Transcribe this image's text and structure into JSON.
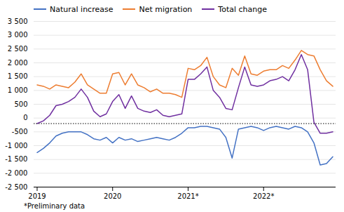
{
  "chart_data": {
    "type": "line",
    "categories": [
      "2019",
      null,
      null,
      null,
      null,
      null,
      null,
      null,
      null,
      null,
      null,
      null,
      "2020",
      null,
      null,
      null,
      null,
      null,
      null,
      null,
      null,
      null,
      null,
      null,
      "2021*",
      null,
      null,
      null,
      null,
      null,
      null,
      null,
      null,
      null,
      null,
      null,
      "2022*",
      null,
      null,
      null,
      null,
      null,
      null,
      null,
      null,
      null,
      null,
      null
    ],
    "series": [
      {
        "name": "Natural increase",
        "color": "#4472C4",
        "values": [
          -1250,
          -1100,
          -900,
          -650,
          -550,
          -500,
          -500,
          -500,
          -600,
          -750,
          -800,
          -700,
          -900,
          -700,
          -800,
          -750,
          -850,
          -800,
          -750,
          -700,
          -750,
          -800,
          -700,
          -550,
          -350,
          -350,
          -300,
          -300,
          -350,
          -400,
          -700,
          -1450,
          -400,
          -350,
          -300,
          -350,
          -450,
          -350,
          -300,
          -350,
          -400,
          -300,
          -350,
          -500,
          -900,
          -1700,
          -1650,
          -1400
        ]
      },
      {
        "name": "Net migration",
        "color": "#ED7D31",
        "values": [
          1200,
          1150,
          1050,
          1200,
          1150,
          1100,
          1300,
          1600,
          1200,
          1050,
          900,
          900,
          1600,
          1650,
          1200,
          1600,
          1200,
          1100,
          950,
          1050,
          900,
          900,
          850,
          750,
          1800,
          1750,
          1900,
          2200,
          1500,
          1200,
          1100,
          1800,
          1550,
          2250,
          1600,
          1550,
          1700,
          1750,
          1750,
          1900,
          1800,
          2100,
          2450,
          2300,
          2250,
          1750,
          1350,
          1150
        ]
      },
      {
        "name": "Total change",
        "color": "#7030A0",
        "values": [
          -200,
          -100,
          100,
          450,
          500,
          600,
          750,
          1050,
          750,
          250,
          50,
          150,
          600,
          850,
          350,
          800,
          350,
          250,
          200,
          300,
          100,
          50,
          100,
          150,
          1400,
          1400,
          1600,
          1850,
          1000,
          750,
          350,
          300,
          1100,
          1850,
          1200,
          1150,
          1200,
          1350,
          1400,
          1500,
          1350,
          1750,
          2300,
          1750,
          -150,
          -550,
          -550,
          -500
        ]
      }
    ],
    "ylim": [
      -2500,
      3500
    ],
    "yticks": [
      {
        "value": -2500,
        "label": "-2 500"
      },
      {
        "value": -2000,
        "label": "-2 000"
      },
      {
        "value": -1500,
        "label": "-1 500"
      },
      {
        "value": -1000,
        "label": "-1 000"
      },
      -500,
      0,
      500,
      {
        "value": 1000,
        "label": "1 000"
      },
      {
        "value": 1500,
        "label": "1 500"
      },
      {
        "value": 2000,
        "label": "2 000"
      },
      {
        "value": 2500,
        "label": "2 500"
      },
      {
        "value": 3000,
        "label": "3 000"
      },
      {
        "value": 3500,
        "label": "3 500"
      }
    ],
    "reference_lines": [
      {
        "y": -200,
        "line_style": "dotted"
      }
    ],
    "footnote": "*Preliminary data",
    "grid": true,
    "legend": "top"
  }
}
